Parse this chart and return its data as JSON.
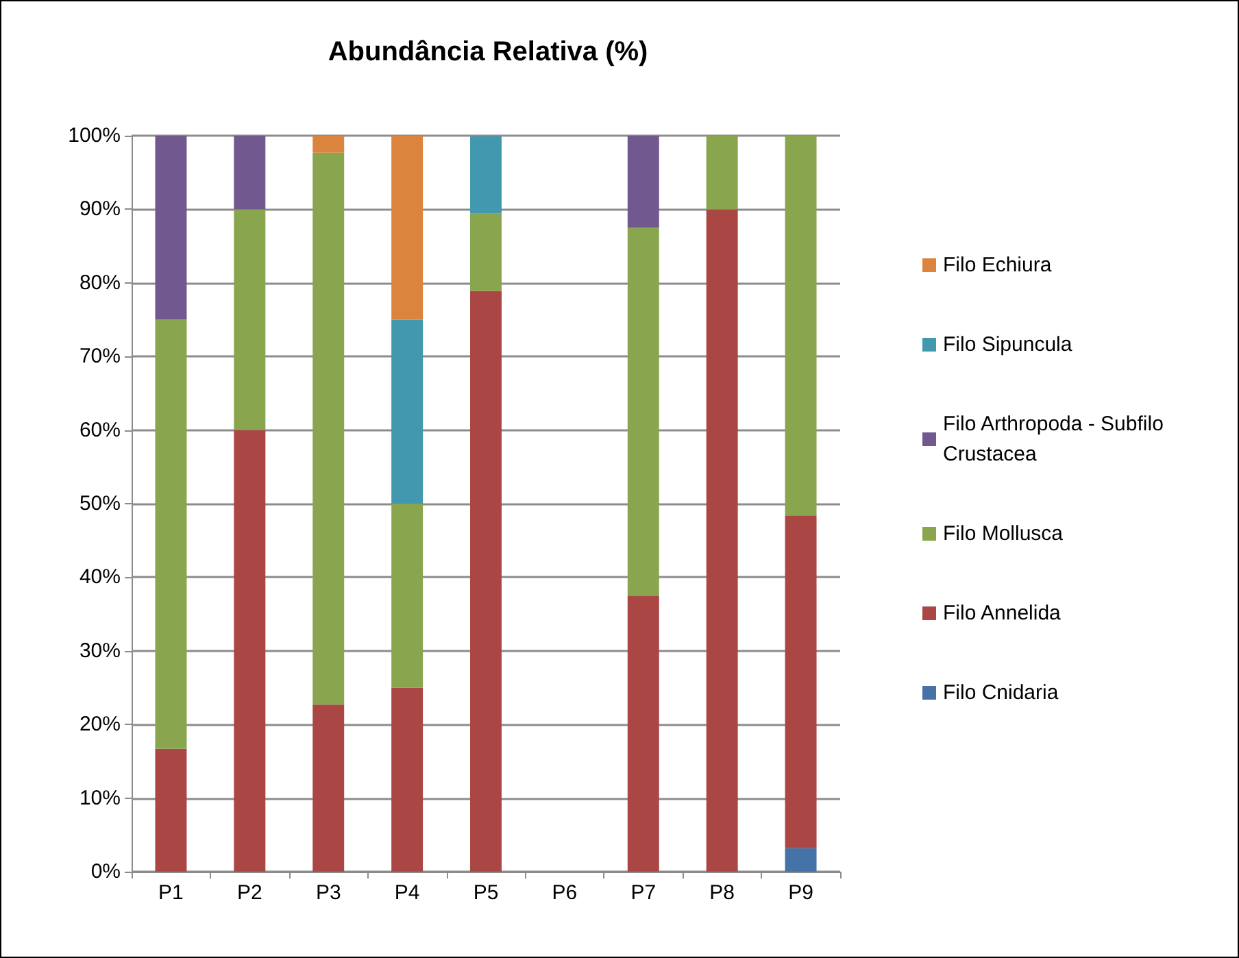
{
  "chart_data": {
    "type": "bar",
    "title": "Abundância Relativa (%)",
    "stacked": true,
    "categories": [
      "P1",
      "P2",
      "P3",
      "P4",
      "P5",
      "P6",
      "P7",
      "P8",
      "P9"
    ],
    "series": [
      {
        "name": "Filo Cnidaria",
        "color": "#4572a7",
        "values": [
          0,
          0,
          0,
          0,
          0,
          0,
          0,
          0,
          3.2
        ]
      },
      {
        "name": "Filo Annelida",
        "color": "#aa4643",
        "values": [
          16.7,
          60,
          22.7,
          25,
          78.9,
          0,
          37.5,
          90,
          45.2
        ]
      },
      {
        "name": "Filo Mollusca",
        "color": "#89a54e",
        "values": [
          58.3,
          30,
          75,
          25,
          10.5,
          0,
          50,
          10,
          51.6
        ]
      },
      {
        "name": "Filo Arthropoda - Subfilo Crustacea",
        "color": "#71588f",
        "values": [
          25,
          10,
          0,
          0,
          0,
          0,
          12.5,
          0,
          0
        ]
      },
      {
        "name": "Filo Sipuncula",
        "color": "#4198af",
        "values": [
          0,
          0,
          0,
          25,
          10.5,
          0,
          0,
          0,
          0
        ]
      },
      {
        "name": "Filo Echiura",
        "color": "#db843d",
        "values": [
          0,
          0,
          2.3,
          25,
          0,
          0,
          0,
          0,
          0
        ]
      }
    ],
    "ylim": [
      0,
      100
    ],
    "yticks": [
      {
        "value": 0,
        "label": "0%"
      },
      {
        "value": 10,
        "label": "10%"
      },
      {
        "value": 20,
        "label": "20%"
      },
      {
        "value": 30,
        "label": "30%"
      },
      {
        "value": 40,
        "label": "40%"
      },
      {
        "value": 50,
        "label": "50%"
      },
      {
        "value": 60,
        "label": "60%"
      },
      {
        "value": 70,
        "label": "70%"
      },
      {
        "value": 80,
        "label": "80%"
      },
      {
        "value": 90,
        "label": "90%"
      },
      {
        "value": 100,
        "label": "100%"
      }
    ],
    "grid": "y",
    "legend": "right"
  }
}
